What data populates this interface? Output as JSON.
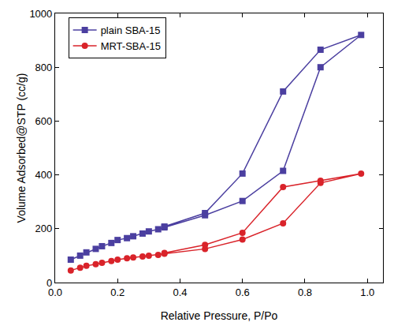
{
  "chart_data": {
    "type": "line",
    "x_label": "Relative Pressure, P/Po",
    "y_label": "Volume Adsorbed@STP (cc/g)",
    "x": [
      0.05,
      0.08,
      0.1,
      0.13,
      0.15,
      0.18,
      0.2,
      0.23,
      0.25,
      0.28,
      0.3,
      0.33,
      0.35,
      0.48,
      0.6,
      0.73,
      0.85,
      0.98,
      0.85,
      0.73,
      0.6,
      0.48,
      0.35
    ],
    "series": [
      {
        "name": "plain SBA-15",
        "color": "#4b3fa0",
        "marker": "square",
        "line_style": "solid",
        "values": [
          85,
          100,
          112,
          125,
          135,
          147,
          158,
          165,
          172,
          182,
          190,
          198,
          205,
          250,
          303,
          415,
          800,
          920,
          865,
          710,
          405,
          258,
          208
        ]
      },
      {
        "name": "MRT-SBA-15",
        "color": "#d9232a",
        "marker": "circle",
        "line_style": "solid",
        "values": [
          45,
          55,
          62,
          68,
          73,
          80,
          85,
          90,
          93,
          97,
          100,
          103,
          107,
          125,
          160,
          220,
          370,
          405,
          378,
          355,
          185,
          140,
          110
        ]
      }
    ],
    "xlim": [
      0,
      1.05
    ],
    "xticks": [
      {
        "value": 0,
        "label": "0.0"
      },
      0.2,
      0.4,
      0.6,
      0.8,
      {
        "value": 1,
        "label": "1.0"
      }
    ],
    "ylim": [
      0,
      1000
    ],
    "yticks": [
      0,
      200,
      400,
      600,
      800,
      1000
    ],
    "grid": false,
    "legend": "top-left"
  }
}
